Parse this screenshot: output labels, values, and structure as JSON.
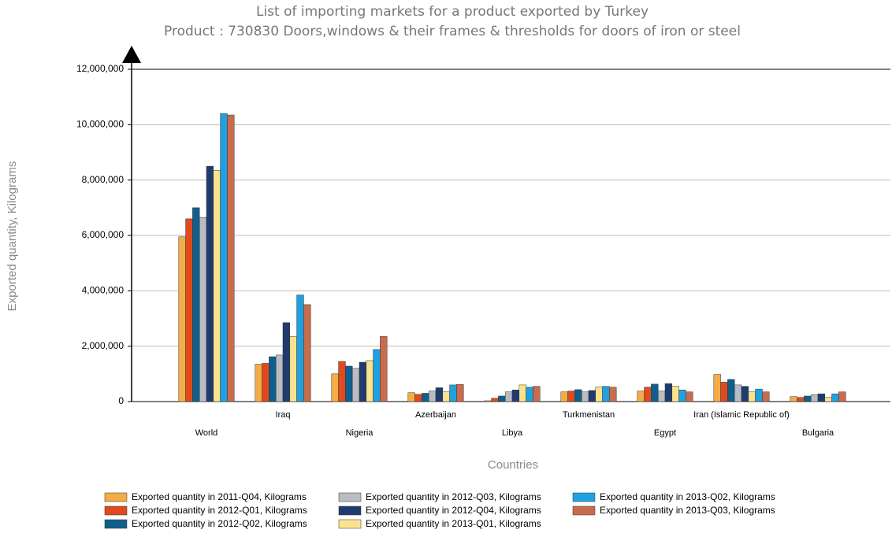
{
  "chart_data": {
    "type": "bar",
    "title": "List of importing markets for a product exported by Turkey",
    "subtitle": "Product : 730830 Doors,windows & their frames & thresholds for doors of iron or steel",
    "y_label": "Exported quantity, Kilograms",
    "x_label": "Countries",
    "categories": [
      "World",
      "Iraq",
      "Nigeria",
      "Azerbaijan",
      "Libya",
      "Turkmenistan",
      "Egypt",
      "Iran (Islamic Republic of)",
      "Bulgaria"
    ],
    "series": [
      {
        "name": "Exported quantity in 2011-Q04, Kilograms",
        "color": "#f5ac45",
        "values": [
          5950000,
          1350000,
          1000000,
          320000,
          30000,
          350000,
          380000,
          980000,
          180000
        ]
      },
      {
        "name": "Exported quantity in 2012-Q01, Kilograms",
        "color": "#e14a1d",
        "values": [
          6600000,
          1380000,
          1450000,
          260000,
          120000,
          380000,
          520000,
          700000,
          150000
        ]
      },
      {
        "name": "Exported quantity in 2012-Q02, Kilograms",
        "color": "#0f5f8d",
        "values": [
          7000000,
          1620000,
          1280000,
          300000,
          200000,
          430000,
          630000,
          800000,
          200000
        ]
      },
      {
        "name": "Exported quantity in 2012-Q03, Kilograms",
        "color": "#b9bdc3",
        "values": [
          6650000,
          1680000,
          1200000,
          380000,
          350000,
          350000,
          380000,
          600000,
          250000
        ]
      },
      {
        "name": "Exported quantity in 2012-Q04, Kilograms",
        "color": "#1f3b6f",
        "values": [
          8500000,
          2850000,
          1420000,
          500000,
          420000,
          400000,
          650000,
          550000,
          280000
        ]
      },
      {
        "name": "Exported quantity in 2013-Q01, Kilograms",
        "color": "#fbe38d",
        "values": [
          8350000,
          2350000,
          1480000,
          350000,
          600000,
          520000,
          550000,
          350000,
          150000
        ]
      },
      {
        "name": "Exported quantity in 2013-Q02, Kilograms",
        "color": "#1fa1e1",
        "values": [
          10400000,
          3850000,
          1880000,
          600000,
          520000,
          550000,
          420000,
          450000,
          280000
        ]
      },
      {
        "name": "Exported quantity in 2013-Q03, Kilograms",
        "color": "#c96b4d",
        "values": [
          10350000,
          3500000,
          2350000,
          620000,
          550000,
          520000,
          350000,
          350000,
          350000
        ]
      }
    ],
    "ylim": [
      0,
      12000000
    ],
    "yticks": [
      0,
      {
        "value": 2000000,
        "label": "2,000,000"
      },
      {
        "value": 4000000,
        "label": "4,000,000"
      },
      {
        "value": 6000000,
        "label": "6,000,000"
      },
      {
        "value": 8000000,
        "label": "8,000,000"
      },
      {
        "value": 10000000,
        "label": "10,000,000"
      },
      {
        "value": 12000000,
        "label": "12,000,000"
      }
    ],
    "grid": true
  }
}
